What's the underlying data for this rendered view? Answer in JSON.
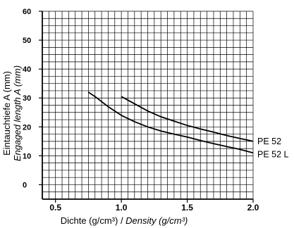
{
  "chart_data": {
    "type": "line",
    "xlabel": "Dichte (g/cm³)",
    "xlabel_en": "Density (g/cm³)",
    "xlabel_sep": " / ",
    "ylabel": "Eintauchtiefe A (mm)",
    "ylabel_en": "Engaged length A (mm)",
    "xlim": [
      0.4,
      2.0
    ],
    "ylim": [
      -5,
      60
    ],
    "x_ticks": [
      {
        "value": 0.5,
        "label": "0.5"
      },
      {
        "value": 1.0,
        "label": "1.0"
      },
      {
        "value": 1.5,
        "label": "1.5"
      },
      {
        "value": 2.0,
        "label": "2.0"
      }
    ],
    "y_ticks": [
      {
        "value": 0,
        "label": "0"
      },
      {
        "value": 10,
        "label": "10"
      },
      {
        "value": 20,
        "label": "20"
      },
      {
        "value": 30,
        "label": "30"
      },
      {
        "value": 40,
        "label": "40"
      },
      {
        "value": 50,
        "label": "50"
      },
      {
        "value": 60,
        "label": "60"
      }
    ],
    "grid": true,
    "series": [
      {
        "name": "PE 52",
        "x": [
          1.0,
          1.1,
          1.2,
          1.3,
          1.4,
          1.5,
          1.6,
          1.7,
          1.8,
          1.9,
          2.0
        ],
        "y": [
          30.5,
          28,
          25.5,
          23.5,
          22,
          20.5,
          19.3,
          18.2,
          17,
          16,
          15
        ]
      },
      {
        "name": "PE 52 L",
        "x": [
          0.75,
          0.8,
          0.9,
          1.0,
          1.1,
          1.2,
          1.3,
          1.4,
          1.5,
          1.6,
          1.7,
          1.8,
          1.9,
          2.0
        ],
        "y": [
          32,
          30.5,
          27,
          24,
          21.8,
          20,
          18.6,
          17.5,
          16.5,
          15.3,
          14.2,
          13.2,
          12.2,
          11
        ]
      }
    ]
  }
}
